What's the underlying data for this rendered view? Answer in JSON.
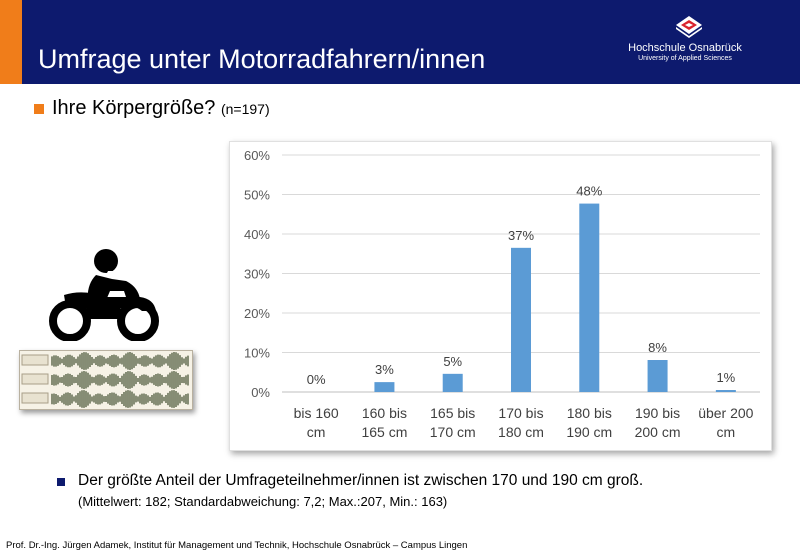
{
  "slide": {
    "title": "Umfrage unter Motorradfahrern/innen",
    "question": "Ihre Körpergröße?",
    "sample": "(n=197)",
    "note_main": "Der größte Anteil der Umfrageteilnehmer/innen ist zwischen 170 und 190 cm groß.",
    "note_stats": "(Mittelwert: 182; Standardabweichung:  7,2; Max.:207, Min.: 163)",
    "footer": "Prof. Dr.-Ing. Jürgen Adamek,  Institut für Management und Technik, Hochschule Osnabrück – Campus Lingen"
  },
  "logo": {
    "name": "Hochschule Osnabrück",
    "sub": "University of Applied Sciences"
  },
  "icons": [
    "motorcycle-rider-icon",
    "audio-waveform-thumbnail",
    "university-logo-icon"
  ],
  "colors": {
    "header": "#0d1a6e",
    "accent": "#f07d1a",
    "bar": "#5b9bd5"
  },
  "chart_data": {
    "type": "bar",
    "categories": [
      [
        "bis 160",
        "cm"
      ],
      [
        "160 bis",
        "165 cm"
      ],
      [
        "165 bis",
        "170 cm"
      ],
      [
        "170 bis",
        "180 cm"
      ],
      [
        "180 bis",
        "190 cm"
      ],
      [
        "190 bis",
        "200 cm"
      ],
      [
        "über 200",
        "cm"
      ]
    ],
    "values": [
      0,
      2.5,
      4.6,
      36.5,
      47.7,
      8.1,
      0.5
    ],
    "data_labels": [
      "0%",
      "3%",
      "5%",
      "37%",
      "48%",
      "8%",
      "1%"
    ],
    "y_ticks": [
      "0%",
      "10%",
      "20%",
      "30%",
      "40%",
      "50%",
      "60%"
    ],
    "ylim": [
      0,
      60
    ],
    "grid": true
  }
}
